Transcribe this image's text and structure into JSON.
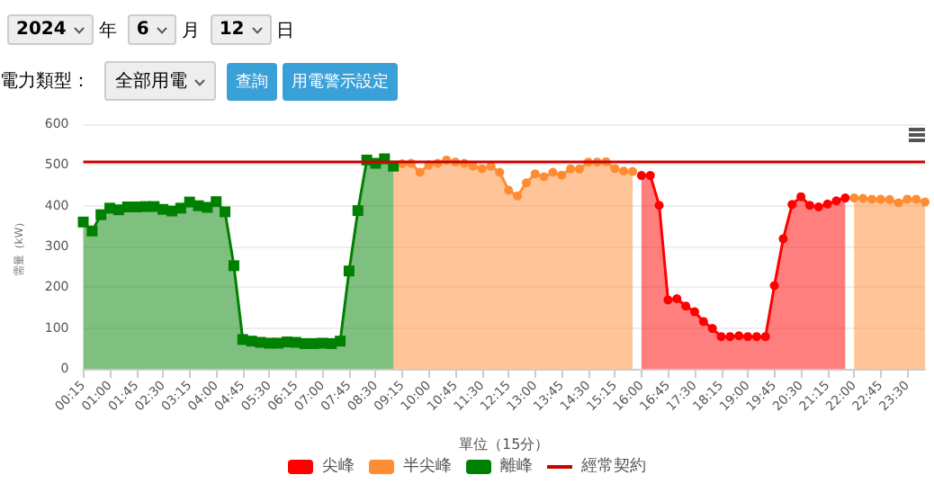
{
  "chart_data": {
    "type": "area",
    "xlabel": "單位（15分）",
    "ylabel": "需量（kW）",
    "annotations": [
      "2024",
      "年",
      "6",
      "月",
      "12",
      "日",
      "電力類型：",
      "全部用電",
      "查詢",
      "用電警示設定"
    ],
    "categories": [
      "00:15",
      null,
      null,
      "01:00",
      null,
      null,
      "01:45",
      null,
      null,
      "02:30",
      null,
      null,
      "03:15",
      null,
      null,
      "04:00",
      null,
      null,
      "04:45",
      null,
      null,
      "05:30",
      null,
      null,
      "06:15",
      null,
      null,
      "07:00",
      null,
      null,
      "07:45",
      null,
      null,
      "08:30",
      null,
      null,
      "09:15",
      null,
      null,
      "10:00",
      null,
      null,
      "10:45",
      null,
      null,
      "11:30",
      null,
      null,
      "12:15",
      null,
      null,
      "13:00",
      null,
      null,
      "13:45",
      null,
      null,
      "14:30",
      null,
      null,
      "15:15",
      null,
      null,
      "16:00",
      null,
      null,
      "16:45",
      null,
      null,
      "17:30",
      null,
      null,
      "18:15",
      null,
      null,
      "19:00",
      null,
      null,
      "19:45",
      null,
      null,
      "20:30",
      null,
      null,
      "21:15",
      null,
      null,
      "22:00",
      null,
      null,
      "22:45",
      null,
      null,
      "23:30",
      null,
      null
    ],
    "ylim": [
      0,
      600
    ],
    "yticks": [
      0,
      100,
      200,
      300,
      400,
      500,
      600
    ],
    "grid": "y",
    "legend": "bottom",
    "series": [
      {
        "name": "尖峰",
        "color": "#ff0000",
        "marker": "circle",
        "values": [
          null,
          null,
          null,
          null,
          null,
          null,
          null,
          null,
          null,
          null,
          null,
          null,
          null,
          null,
          null,
          null,
          null,
          null,
          null,
          null,
          null,
          null,
          null,
          null,
          null,
          null,
          null,
          null,
          null,
          null,
          null,
          null,
          null,
          null,
          null,
          null,
          null,
          null,
          null,
          null,
          null,
          null,
          null,
          null,
          null,
          null,
          null,
          null,
          null,
          null,
          null,
          null,
          null,
          null,
          null,
          null,
          null,
          null,
          null,
          null,
          null,
          null,
          null,
          474,
          474,
          401,
          169,
          172,
          154,
          140,
          116,
          99,
          79,
          79,
          81,
          79,
          79,
          79,
          204,
          319,
          403,
          422,
          401,
          397,
          404,
          412,
          419,
          null,
          null,
          null,
          null,
          null,
          null,
          null,
          null,
          null
        ]
      },
      {
        "name": "半尖峰",
        "color": "#ff8c33",
        "marker": "circle",
        "values": [
          null,
          null,
          null,
          null,
          null,
          null,
          null,
          null,
          null,
          null,
          null,
          null,
          null,
          null,
          null,
          null,
          null,
          null,
          null,
          null,
          null,
          null,
          null,
          null,
          null,
          null,
          null,
          null,
          null,
          null,
          null,
          null,
          null,
          null,
          null,
          496,
          503,
          504,
          482,
          500,
          504,
          512,
          507,
          504,
          497,
          491,
          497,
          482,
          438,
          424,
          456,
          478,
          471,
          482,
          475,
          490,
          490,
          507,
          507,
          508,
          491,
          485,
          484,
          null,
          null,
          null,
          null,
          null,
          null,
          null,
          null,
          null,
          null,
          null,
          null,
          null,
          null,
          null,
          null,
          null,
          null,
          null,
          null,
          null,
          null,
          null,
          null,
          419,
          418,
          416,
          416,
          415,
          407,
          416,
          416,
          409
        ]
      },
      {
        "name": "離峰",
        "color": "#008000",
        "marker": "square",
        "values": [
          360,
          338,
          378,
          394,
          390,
          397,
          397,
          398,
          398,
          391,
          387,
          394,
          409,
          400,
          396,
          410,
          385,
          253,
          72,
          68,
          65,
          63,
          63,
          66,
          65,
          62,
          62,
          63,
          62,
          68,
          240,
          388,
          512,
          504,
          515,
          497,
          null,
          null,
          null,
          null,
          null,
          null,
          null,
          null,
          null,
          null,
          null,
          null,
          null,
          null,
          null,
          null,
          null,
          null,
          null,
          null,
          null,
          null,
          null,
          null,
          null,
          null,
          null,
          null,
          null,
          null,
          null,
          null,
          null,
          null,
          null,
          null,
          null,
          null,
          null,
          null,
          null,
          null,
          null,
          null,
          null,
          null,
          null,
          null,
          null,
          null,
          null,
          null,
          null,
          null,
          null,
          null,
          null,
          null,
          null,
          null
        ]
      }
    ],
    "ref_lines": [
      {
        "axis": "y",
        "value": 510,
        "label": "經常契約",
        "color": "#cc0000"
      }
    ]
  }
}
